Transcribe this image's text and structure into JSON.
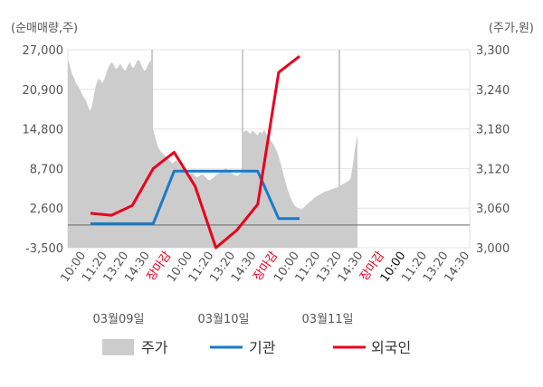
{
  "chart_data": {
    "type": "line",
    "left_axis_unit": "(순매매량,주)",
    "right_axis_unit": "(주가,원)",
    "left_ticks": [
      "27,000",
      "20,900",
      "14,800",
      "8,700",
      "2,600",
      "-3,500"
    ],
    "left_tick_values": [
      27000,
      20900,
      14800,
      8700,
      2600,
      -3500
    ],
    "right_ticks": [
      "3,300",
      "3,240",
      "3,180",
      "3,120",
      "3,060",
      "3,000"
    ],
    "right_tick_values": [
      3300,
      3240,
      3180,
      3120,
      3060,
      3000
    ],
    "left_ylim": [
      -3500,
      27000
    ],
    "right_ylim": [
      3000,
      3300
    ],
    "grid": true,
    "legend_position": "bottom",
    "x_tick_labels": [
      {
        "text": "10:00",
        "color": "#555555"
      },
      {
        "text": "11:20",
        "color": "#555555"
      },
      {
        "text": "13:20",
        "color": "#555555"
      },
      {
        "text": "14:30",
        "color": "#555555"
      },
      {
        "text": "장마감",
        "color": "#e8001c"
      },
      {
        "text": "10:00",
        "color": "#555555"
      },
      {
        "text": "11:20",
        "color": "#555555"
      },
      {
        "text": "13:20",
        "color": "#555555"
      },
      {
        "text": "14:30",
        "color": "#555555"
      },
      {
        "text": "장마감",
        "color": "#e8001c"
      },
      {
        "text": "10:00",
        "color": "#555555"
      },
      {
        "text": "11:20",
        "color": "#555555"
      },
      {
        "text": "13:20",
        "color": "#555555"
      },
      {
        "text": "14:30",
        "color": "#555555"
      },
      {
        "text": "장마감",
        "color": "#e8001c"
      },
      {
        "text": "10:00",
        "color": "#111111"
      },
      {
        "text": "11:20",
        "color": "#555555"
      },
      {
        "text": "13:20",
        "color": "#555555"
      },
      {
        "text": "14:30",
        "color": "#555555"
      }
    ],
    "date_labels": [
      "03월09일",
      "03월10일",
      "03월11일"
    ],
    "series": [
      {
        "name": "주가",
        "type": "area",
        "axis": "right",
        "color": "#cccccc",
        "day1": [
          3284,
          3279,
          3270,
          3262,
          3258,
          3252,
          3247,
          3245,
          3240,
          3236,
          3231,
          3227,
          3224,
          3219,
          3212,
          3208,
          3212,
          3223,
          3236,
          3246,
          3253,
          3256,
          3254,
          3250,
          3252,
          3257,
          3264,
          3271,
          3276,
          3279,
          3281,
          3277,
          3273,
          3271,
          3274,
          3278,
          3277,
          3273,
          3270,
          3268,
          3274,
          3278,
          3281,
          3276,
          3272,
          3274,
          3279,
          3283,
          3285,
          3281,
          3275,
          3271,
          3268,
          3270,
          3276,
          3280,
          3284,
          3286
        ],
        "day2": [
          3180,
          3169,
          3158,
          3150,
          3146,
          3143,
          3140,
          3137,
          3134,
          3131,
          3128,
          3130,
          3133,
          3129,
          3124,
          3120,
          3117,
          3114,
          3111,
          3112,
          3114,
          3111,
          3108,
          3107,
          3109,
          3111,
          3110,
          3107,
          3104,
          3102,
          3104,
          3106,
          3109,
          3111,
          3114,
          3116,
          3117,
          3120,
          3119,
          3116,
          3114,
          3112,
          3110,
          3109,
          3110,
          3113,
          3116
        ],
        "day3": [
          3175,
          3178,
          3176,
          3172,
          3178,
          3174,
          3170,
          3176,
          3173,
          3179,
          3171,
          3166,
          3161,
          3156,
          3149,
          3140,
          3128,
          3114,
          3100,
          3088,
          3078,
          3070,
          3064,
          3061,
          3059,
          3058,
          3061,
          3065,
          3068,
          3071,
          3074,
          3077,
          3079,
          3081,
          3083,
          3085,
          3086,
          3087,
          3089,
          3090,
          3091,
          3093,
          3095,
          3097,
          3099,
          3101,
          3104,
          3125,
          3152,
          3170
        ]
      },
      {
        "name": "기관",
        "type": "line",
        "axis": "left",
        "color": "#1a7ac9",
        "points": [
          [
            0,
            200
          ],
          [
            1,
            200
          ],
          [
            2,
            200
          ],
          [
            3,
            200
          ],
          [
            4,
            8300
          ],
          [
            5,
            8300
          ],
          [
            6,
            8300
          ],
          [
            7,
            8300
          ],
          [
            8,
            8300
          ],
          [
            9,
            1000
          ],
          [
            10,
            1000
          ]
        ]
      },
      {
        "name": "외국인",
        "type": "line",
        "axis": "left",
        "color": "#e8001c",
        "points": [
          [
            0,
            1800
          ],
          [
            1,
            1500
          ],
          [
            2,
            3000
          ],
          [
            3,
            8700
          ],
          [
            4,
            11200
          ],
          [
            5,
            6000
          ],
          [
            6,
            -3500
          ],
          [
            7,
            -800
          ],
          [
            8,
            3200
          ],
          [
            9,
            23500
          ],
          [
            10,
            26000
          ]
        ]
      }
    ]
  }
}
